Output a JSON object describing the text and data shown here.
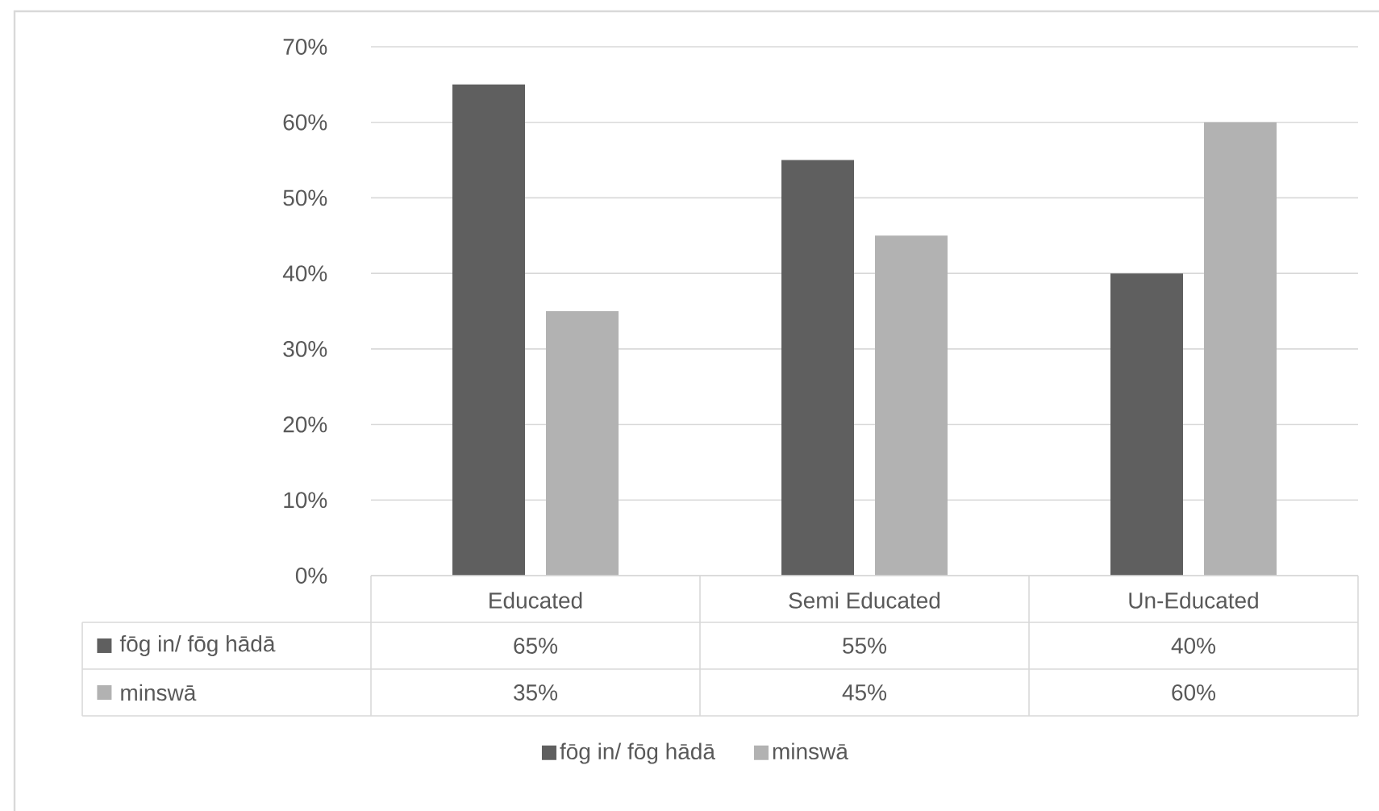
{
  "chart_data": {
    "type": "bar",
    "categories": [
      "Educated",
      "Semi Educated",
      "Un-Educated"
    ],
    "series": [
      {
        "name": "fōg in/ fōg hādā",
        "color": "#5f5f5f",
        "values": [
          65,
          55,
          40
        ],
        "value_labels": [
          "65%",
          "55%",
          "40%"
        ]
      },
      {
        "name": "minswā",
        "color": "#b2b2b2",
        "values": [
          35,
          45,
          60
        ],
        "value_labels": [
          "35%",
          "45%",
          "60%"
        ]
      }
    ],
    "ylim": [
      0,
      70
    ],
    "yticks": [
      {
        "value": 0,
        "label": "0%"
      },
      {
        "value": 10,
        "label": "10%"
      },
      {
        "value": 20,
        "label": "20%"
      },
      {
        "value": 30,
        "label": "30%"
      },
      {
        "value": 40,
        "label": "40%"
      },
      {
        "value": 50,
        "label": "50%"
      },
      {
        "value": 60,
        "label": "60%"
      },
      {
        "value": 70,
        "label": "70%"
      }
    ],
    "grid": "y",
    "legend": "bottom"
  }
}
